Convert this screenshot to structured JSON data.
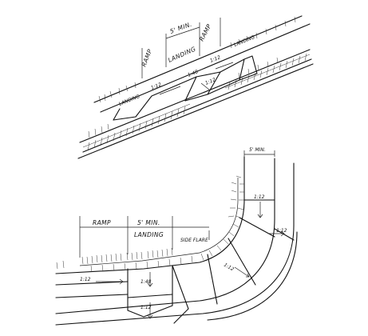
{
  "top_figure": {
    "ramp_left": "RAMP",
    "min_dimension": "5' MIN.",
    "landing": "LANDING",
    "ramp_right": "RAMP",
    "slope_left": "1:12",
    "slope_center": "1:48",
    "slope_center_b": "1:12",
    "slope_right": "1:12",
    "landing_left": "LANDING",
    "landing_right": "LANDING"
  },
  "bottom_figure": {
    "ramp": "RAMP",
    "min_dimension": "5' MIN.",
    "landing": "LANDING",
    "side_flare": "SIDE FLARE",
    "min_dimension_right": "5' MIN.",
    "slope_left": "1:12",
    "slope_center": "1:48",
    "slope_lower": "1:12",
    "slope_right_upper": "1:12",
    "slope_right_mid": "1:12",
    "slope_flare": "1:12"
  }
}
